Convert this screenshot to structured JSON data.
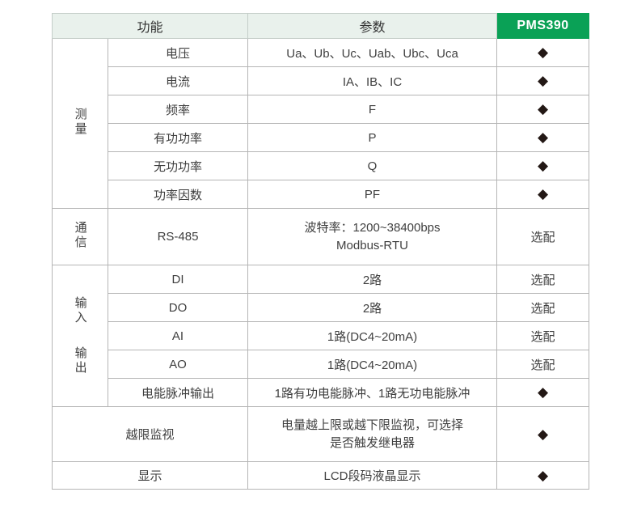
{
  "header": {
    "function_label": "功能",
    "param_label": "参数",
    "model_label": "PMS390"
  },
  "groups": {
    "measurement": "测量",
    "communication": "通信",
    "input": "输入",
    "output": "输出"
  },
  "marks": {
    "standard": "◆",
    "optional": "选配"
  },
  "rows": [
    {
      "func": "电压",
      "param": "Ua、Ub、Uc、Uab、Ubc、Uca",
      "support": "◆"
    },
    {
      "func": "电流",
      "param": "IA、IB、IC",
      "support": "◆"
    },
    {
      "func": "频率",
      "param": "F",
      "support": "◆"
    },
    {
      "func": "有功功率",
      "param": "P",
      "support": "◆"
    },
    {
      "func": "无功功率",
      "param": "Q",
      "support": "◆"
    },
    {
      "func": "功率因数",
      "param": "PF",
      "support": "◆"
    },
    {
      "func": "RS-485",
      "param_line1": "波特率：1200~38400bps",
      "param_line2": "Modbus-RTU",
      "support": "选配"
    },
    {
      "func": "DI",
      "param": "2路",
      "support": "选配"
    },
    {
      "func": "DO",
      "param": "2路",
      "support": "选配"
    },
    {
      "func": "AI",
      "param": "1路(DC4~20mA)",
      "support": "选配"
    },
    {
      "func": "AO",
      "param": "1路(DC4~20mA)",
      "support": "选配"
    },
    {
      "func": "电能脉冲输出",
      "param": "1路有功电能脉冲、1路无功电能脉冲",
      "support": "◆"
    },
    {
      "func": "越限监视",
      "param_line1": "电量越上限或越下限监视，可选择",
      "param_line2": "是否触发继电器",
      "support": "◆"
    },
    {
      "func": "显示",
      "param": "LCD段码液晶显示",
      "support": "◆"
    }
  ],
  "colors": {
    "accent_green": "#0aa156",
    "header_bg": "#e9f1ec",
    "border": "#b5b5b5",
    "text": "#3f3f3f",
    "diamond": "#231815"
  }
}
